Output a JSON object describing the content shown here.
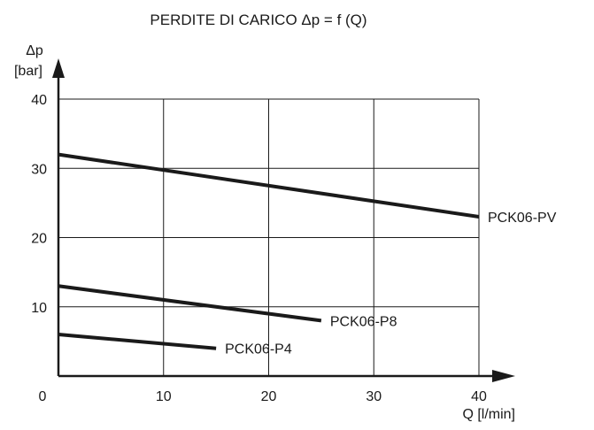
{
  "chart_data": {
    "type": "line",
    "title": "PERDITE DI CARICO Δp = f (Q)",
    "xlabel": "Q [l/min]",
    "ylabel_symbol": "Δp",
    "ylabel_unit": "[bar]",
    "xlim": [
      0,
      40
    ],
    "ylim": [
      0,
      40
    ],
    "x_ticks": [
      0,
      10,
      20,
      30,
      40
    ],
    "y_ticks": [
      10,
      20,
      30,
      40
    ],
    "x_tick_labels": [
      "0",
      "10",
      "20",
      "30",
      "40"
    ],
    "y_tick_labels": [
      "10",
      "20",
      "30",
      "40"
    ],
    "grid": true,
    "series": [
      {
        "name": "PCK06-PV",
        "x": [
          0,
          40
        ],
        "y": [
          32,
          23
        ]
      },
      {
        "name": "PCK06-P8",
        "x": [
          0,
          25
        ],
        "y": [
          13,
          8
        ]
      },
      {
        "name": "PCK06-P4",
        "x": [
          0,
          15
        ],
        "y": [
          6,
          4
        ]
      }
    ]
  }
}
